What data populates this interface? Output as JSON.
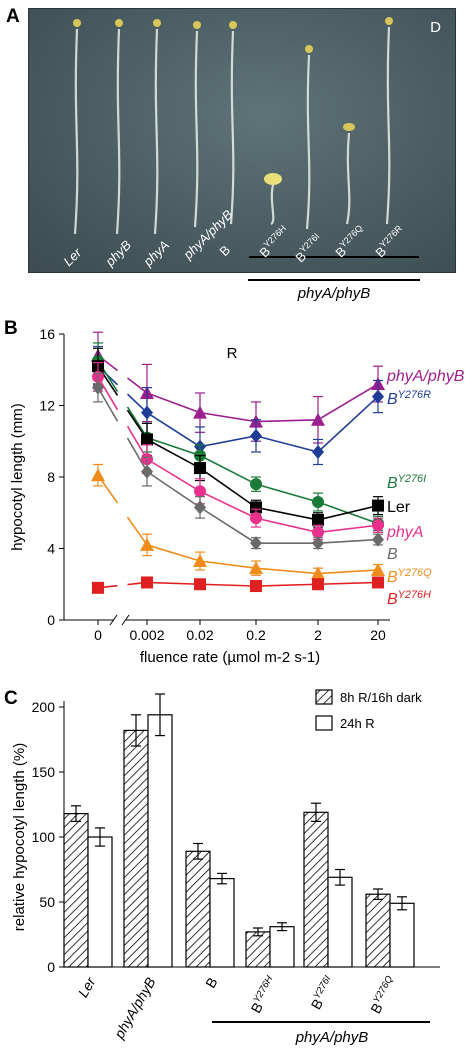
{
  "panels": {
    "a": {
      "letter": "A",
      "corner_label": "D",
      "seedlings": [
        {
          "name": "Ler",
          "base": "Ler",
          "sup": "",
          "italic": true
        },
        {
          "name": "phyB",
          "base": "phyB",
          "sup": "",
          "italic": true
        },
        {
          "name": "phyA",
          "base": "phyA",
          "sup": "",
          "italic": true
        },
        {
          "name": "phyA/phyB",
          "base": "phyA/phyB",
          "sup": "",
          "italic": true
        },
        {
          "name": "B",
          "base": "B",
          "sup": "",
          "italic": false
        },
        {
          "name": "BY276H",
          "base": "B",
          "sup": "Y276H",
          "italic": false
        },
        {
          "name": "BY276I",
          "base": "B",
          "sup": "Y276I",
          "italic": false
        },
        {
          "name": "BY276Q",
          "base": "B",
          "sup": "Y276Q",
          "italic": false
        },
        {
          "name": "BY276R",
          "base": "B",
          "sup": "Y276R",
          "italic": false
        }
      ],
      "group_label": "phyA/phyB"
    },
    "b": {
      "letter": "B"
    },
    "c": {
      "letter": "C"
    }
  },
  "chart_data": [
    {
      "id": "B",
      "type": "line",
      "title": "R",
      "xlabel": "fluence rate (µmol m-2 s-1)",
      "ylabel": "hypocotyl length (mm)",
      "x_categories": [
        "0",
        "0.002",
        "0.02",
        "0.2",
        "2",
        "20"
      ],
      "x_scale": "log (0 shown on broken axis)",
      "ylim": [
        0,
        16
      ],
      "yticks": [
        "0",
        "4",
        "8",
        "12",
        "16"
      ],
      "grid": false,
      "series": [
        {
          "name": "phyA/phyB",
          "color": "#9b1f8f",
          "marker": "triangle",
          "values": [
            14.8,
            12.7,
            11.6,
            11.1,
            11.2,
            13.2
          ],
          "errors": [
            1.3,
            1.6,
            1.1,
            1.1,
            1.3,
            1.0
          ]
        },
        {
          "name": "BY276R",
          "color": "#1f3d96",
          "marker": "diamond",
          "values": [
            14.2,
            11.6,
            9.7,
            10.3,
            9.4,
            12.5
          ],
          "errors": [
            1.1,
            1.4,
            1.1,
            0.9,
            0.7,
            0.9
          ]
        },
        {
          "name": "BY276I",
          "color": "#1a7a38",
          "marker": "circle",
          "values": [
            14.5,
            10.2,
            9.2,
            7.6,
            6.6,
            5.4
          ],
          "errors": [
            1.0,
            0.8,
            0.6,
            0.4,
            0.5,
            0.4
          ]
        },
        {
          "name": "Ler",
          "color": "#000000",
          "marker": "square",
          "values": [
            14.2,
            10.1,
            8.5,
            6.3,
            5.6,
            6.4
          ],
          "errors": [
            1.0,
            0.9,
            0.7,
            0.4,
            0.4,
            0.5
          ]
        },
        {
          "name": "phyA",
          "color": "#e8318c",
          "marker": "circle",
          "values": [
            13.6,
            9.0,
            7.2,
            5.7,
            4.9,
            5.3
          ],
          "errors": [
            0.8,
            0.8,
            0.7,
            0.5,
            0.4,
            0.4
          ]
        },
        {
          "name": "B",
          "color": "#6a6a6a",
          "marker": "diamond",
          "values": [
            13.0,
            8.3,
            6.3,
            4.3,
            4.3,
            4.5
          ],
          "errors": [
            0.8,
            0.8,
            0.6,
            0.3,
            0.3,
            0.3
          ]
        },
        {
          "name": "BY276Q",
          "color": "#f08c1a",
          "marker": "triangle",
          "values": [
            8.1,
            4.2,
            3.3,
            2.9,
            2.6,
            2.8
          ],
          "errors": [
            0.6,
            0.6,
            0.5,
            0.4,
            0.3,
            0.3
          ]
        },
        {
          "name": "BY276H",
          "color": "#e02020",
          "marker": "square",
          "values": [
            1.8,
            2.1,
            2.0,
            1.9,
            2.0,
            2.1
          ],
          "errors": [
            0.1,
            0.1,
            0.1,
            0.1,
            0.1,
            0.1
          ]
        }
      ],
      "legend_labels": [
        {
          "series": "phyA/phyB",
          "base": "phyA/phyB",
          "sup": "",
          "italic": true
        },
        {
          "series": "BY276R",
          "base": "B",
          "sup": "Y276R",
          "italic": true
        },
        {
          "series": "BY276I",
          "base": "B",
          "sup": "Y276I",
          "italic": true
        },
        {
          "series": "Ler",
          "base": "Ler",
          "sup": "",
          "italic": false
        },
        {
          "series": "phyA",
          "base": "phyA",
          "sup": "",
          "italic": true
        },
        {
          "series": "B",
          "base": "B",
          "sup": "",
          "italic": true
        },
        {
          "series": "BY276Q",
          "base": "B",
          "sup": "Y276Q",
          "italic": true
        },
        {
          "series": "BY276H",
          "base": "B",
          "sup": "Y276H",
          "italic": true
        }
      ],
      "legend_placement": "right, beside line ends"
    },
    {
      "id": "C",
      "type": "bar",
      "ylabel": "relative hypocotyl length (%)",
      "ylim": [
        0,
        200
      ],
      "yticks": [
        "0",
        "50",
        "100",
        "150",
        "200"
      ],
      "categories": [
        "Ler",
        "phyA/phyB",
        "B",
        "BY276H",
        "BY276I",
        "BY276Q"
      ],
      "category_labels": [
        {
          "base": "Ler",
          "sup": "",
          "italic": true
        },
        {
          "base": "phyA/phyB",
          "sup": "",
          "italic": true
        },
        {
          "base": "B",
          "sup": "",
          "italic": false
        },
        {
          "base": "B",
          "sup": "Y276H",
          "italic": false
        },
        {
          "base": "B",
          "sup": "Y276I",
          "italic": false
        },
        {
          "base": "B",
          "sup": "Y276Q",
          "italic": false
        }
      ],
      "series": [
        {
          "name": "8h R/16h dark",
          "pattern": "hatched",
          "values": [
            118,
            182,
            89,
            27,
            119,
            56
          ],
          "errors": [
            6,
            12,
            6,
            3,
            7,
            4
          ]
        },
        {
          "name": "24h R",
          "pattern": "open",
          "values": [
            100,
            194,
            68,
            31,
            69,
            49
          ],
          "errors": [
            7,
            16,
            4,
            3,
            6,
            5
          ]
        }
      ],
      "legend_placement": "top-right",
      "group_label": "phyA/phyB",
      "grid": false
    }
  ]
}
